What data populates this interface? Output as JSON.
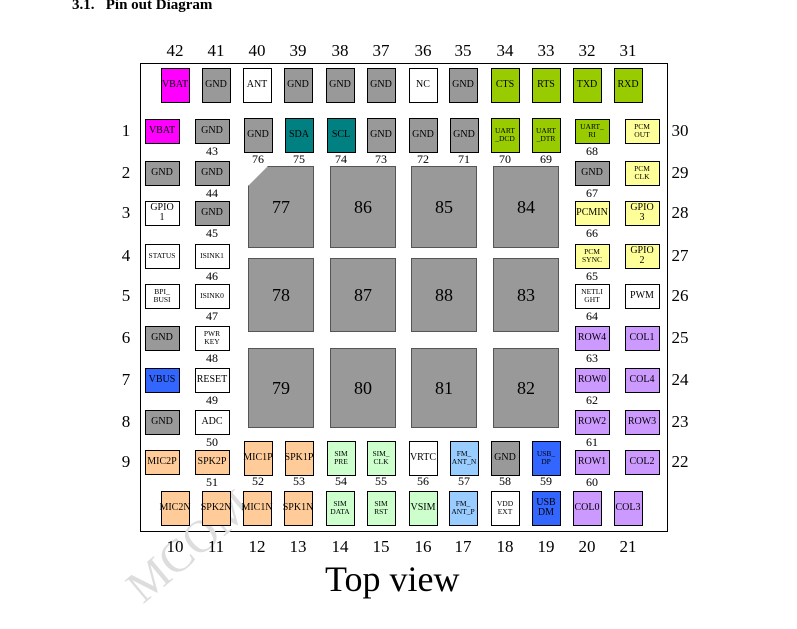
{
  "heading": "3.1.   Pin out Diagram",
  "view_label": "Top view",
  "watermark": "MCOM",
  "top_row": [
    {
      "number": 42,
      "label": "VBAT",
      "color": "#ff00ff"
    },
    {
      "number": 41,
      "label": "GND",
      "color": "#999999"
    },
    {
      "number": 40,
      "label": "ANT",
      "color": "#ffffff"
    },
    {
      "number": 39,
      "label": "GND",
      "color": "#999999"
    },
    {
      "number": 38,
      "label": "GND",
      "color": "#999999"
    },
    {
      "number": 37,
      "label": "GND",
      "color": "#999999"
    },
    {
      "number": 36,
      "label": "NC",
      "color": "#ffffff"
    },
    {
      "number": 35,
      "label": "GND",
      "color": "#999999"
    },
    {
      "number": 34,
      "label": "CTS",
      "color": "#99cc00"
    },
    {
      "number": 33,
      "label": "RTS",
      "color": "#99cc00"
    },
    {
      "number": 32,
      "label": "TXD",
      "color": "#99cc00"
    },
    {
      "number": 31,
      "label": "RXD",
      "color": "#99cc00"
    }
  ],
  "left_column": [
    {
      "number": 1,
      "label": "VBAT",
      "color": "#ff00ff"
    },
    {
      "number": 2,
      "label": "GND",
      "color": "#999999"
    },
    {
      "number": 3,
      "label": "GPIO\n1",
      "color": "#ffffff"
    },
    {
      "number": 4,
      "label": "STATUS",
      "color": "#ffffff"
    },
    {
      "number": 5,
      "label": "BPI_\nBUSI",
      "color": "#ffffff"
    },
    {
      "number": 6,
      "label": "GND",
      "color": "#999999"
    },
    {
      "number": 7,
      "label": "VBUS",
      "color": "#3366ff"
    },
    {
      "number": 8,
      "label": "GND",
      "color": "#999999"
    },
    {
      "number": 9,
      "label": "MIC2P",
      "color": "#ffcc99"
    }
  ],
  "right_column": [
    {
      "number": 30,
      "label": "PCM\nOUT",
      "color": "#ffff99"
    },
    {
      "number": 29,
      "label": "PCM\nCLK",
      "color": "#ffff99"
    },
    {
      "number": 28,
      "label": "GPIO\n3",
      "color": "#ffff99"
    },
    {
      "number": 27,
      "label": "GPIO\n2",
      "color": "#ffff99"
    },
    {
      "number": 26,
      "label": "PWM",
      "color": "#ffffff"
    },
    {
      "number": 25,
      "label": "COL1",
      "color": "#cc99ff"
    },
    {
      "number": 24,
      "label": "COL4",
      "color": "#cc99ff"
    },
    {
      "number": 23,
      "label": "ROW3",
      "color": "#cc99ff"
    },
    {
      "number": 22,
      "label": "COL2",
      "color": "#cc99ff"
    }
  ],
  "bottom_row": [
    {
      "number": 10,
      "label": "MIC2N",
      "color": "#ffcc99"
    },
    {
      "number": 11,
      "label": "SPK2N",
      "color": "#ffcc99"
    },
    {
      "number": 12,
      "label": "MIC1N",
      "color": "#ffcc99"
    },
    {
      "number": 13,
      "label": "SPK1N",
      "color": "#ffcc99"
    },
    {
      "number": 14,
      "label": "SIM\nDATA",
      "color": "#ccffcc"
    },
    {
      "number": 15,
      "label": "SIM\nRST",
      "color": "#ccffcc"
    },
    {
      "number": 16,
      "label": "VSIM",
      "color": "#ccffcc"
    },
    {
      "number": 17,
      "label": "FM_\nANT_P",
      "color": "#99ccff"
    },
    {
      "number": 18,
      "label": "VDD\nEXT",
      "color": "#ffffff"
    },
    {
      "number": 19,
      "label": "USB\nDM",
      "color": "#3366ff"
    },
    {
      "number": 20,
      "label": "COL0",
      "color": "#cc99ff"
    },
    {
      "number": 21,
      "label": "COL3",
      "color": "#cc99ff"
    }
  ],
  "inner_left": [
    {
      "number": 43,
      "label": "GND",
      "color": "#999999"
    },
    {
      "number": 44,
      "label": "GND",
      "color": "#999999"
    },
    {
      "number": 45,
      "label": "GND",
      "color": "#999999"
    },
    {
      "number": 46,
      "label": "ISINK1",
      "color": "#ffffff"
    },
    {
      "number": 47,
      "label": "ISINK0",
      "color": "#ffffff"
    },
    {
      "number": 48,
      "label": "PWR\nKEY",
      "color": "#ffffff"
    },
    {
      "number": 49,
      "label": "RESET",
      "color": "#ffffff"
    },
    {
      "number": 50,
      "label": "ADC",
      "color": "#ffffff"
    },
    {
      "number": 51,
      "label": "SPK2P",
      "color": "#ffcc99"
    }
  ],
  "inner_top": [
    {
      "number": 76,
      "label": "GND",
      "color": "#999999"
    },
    {
      "number": 75,
      "label": "SDA",
      "color": "#008080"
    },
    {
      "number": 74,
      "label": "SCL",
      "color": "#008080"
    },
    {
      "number": 73,
      "label": "GND",
      "color": "#999999"
    },
    {
      "number": 72,
      "label": "GND",
      "color": "#999999"
    },
    {
      "number": 71,
      "label": "GND",
      "color": "#999999"
    },
    {
      "number": 70,
      "label": "UART\n_DCD",
      "color": "#99cc00"
    },
    {
      "number": 69,
      "label": "UART\n_DTR",
      "color": "#99cc00"
    }
  ],
  "inner_right": [
    {
      "number": 68,
      "label": "UART_\nRI",
      "color": "#99cc00"
    },
    {
      "number": 67,
      "label": "GND",
      "color": "#999999"
    },
    {
      "number": 66,
      "label": "PCMIN",
      "color": "#ffff99"
    },
    {
      "number": 65,
      "label": "PCM\nSYNC",
      "color": "#ffff99"
    },
    {
      "number": 64,
      "label": "NETLI\nGHT",
      "color": "#ffffff"
    },
    {
      "number": 63,
      "label": "ROW4",
      "color": "#cc99ff"
    },
    {
      "number": 62,
      "label": "ROW0",
      "color": "#cc99ff"
    },
    {
      "number": 61,
      "label": "ROW2",
      "color": "#cc99ff"
    },
    {
      "number": 60,
      "label": "ROW1",
      "color": "#cc99ff"
    }
  ],
  "inner_bottom": [
    {
      "number": 52,
      "label": "MIC1P",
      "color": "#ffcc99"
    },
    {
      "number": 53,
      "label": "SPK1P",
      "color": "#ffcc99"
    },
    {
      "number": 54,
      "label": "SIM\nPRE",
      "color": "#ccffcc"
    },
    {
      "number": 55,
      "label": "SIM_\nCLK",
      "color": "#ccffcc"
    },
    {
      "number": 56,
      "label": "VRTC",
      "color": "#ffffff"
    },
    {
      "number": 57,
      "label": "FM_\nANT_N",
      "color": "#99ccff"
    },
    {
      "number": 58,
      "label": "GND",
      "color": "#999999"
    },
    {
      "number": 59,
      "label": "USB_\nDP",
      "color": "#3366ff"
    }
  ],
  "center_pads": [
    77,
    86,
    85,
    84,
    78,
    87,
    88,
    83,
    79,
    80,
    81,
    82
  ]
}
